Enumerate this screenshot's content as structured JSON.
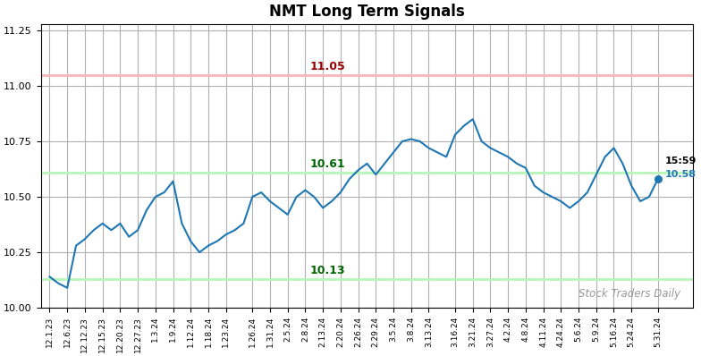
{
  "chart_data": {
    "type": "line",
    "title": "NMT Long Term Signals",
    "watermark": "Stock Traders Daily",
    "categories": [
      "12.1.23",
      null,
      "12.6.23",
      null,
      "12.12.23",
      null,
      "12.15.23",
      null,
      "12.20.23",
      null,
      "12.27.23",
      null,
      "1.3.24",
      null,
      "1.9.24",
      null,
      "1.12.24",
      null,
      "1.18.24",
      null,
      "1.23.24",
      null,
      null,
      "1.26.24",
      null,
      "1.31.24",
      null,
      "2.5.24",
      null,
      "2.8.24",
      null,
      "2.13.24",
      null,
      "2.20.24",
      null,
      "2.26.24",
      null,
      "2.29.24",
      null,
      "3.5.24",
      null,
      "3.8.24",
      null,
      "3.13.24",
      null,
      null,
      "3.16.24",
      null,
      "3.21.24",
      null,
      "3.27.24",
      null,
      "4.2.24",
      null,
      "4.8.24",
      null,
      "4.11.24",
      null,
      "4.24.24",
      null,
      "5.6.24",
      null,
      "5.9.24",
      null,
      "5.16.24",
      null,
      "5.24.24",
      null,
      null,
      "5.31.24"
    ],
    "values": [
      10.14,
      10.11,
      10.09,
      10.28,
      10.31,
      10.35,
      10.38,
      10.35,
      10.38,
      10.32,
      10.35,
      10.44,
      10.5,
      10.52,
      10.57,
      10.38,
      10.3,
      10.25,
      10.28,
      10.3,
      10.33,
      10.35,
      10.38,
      10.5,
      10.52,
      10.48,
      10.45,
      10.42,
      10.5,
      10.53,
      10.5,
      10.45,
      10.48,
      10.52,
      10.58,
      10.62,
      10.65,
      10.6,
      10.65,
      10.7,
      10.75,
      10.76,
      10.75,
      10.72,
      10.7,
      10.68,
      10.78,
      10.82,
      10.85,
      10.75,
      10.72,
      10.7,
      10.68,
      10.65,
      10.63,
      10.55,
      10.52,
      10.5,
      10.48,
      10.45,
      10.48,
      10.52,
      10.6,
      10.68,
      10.72,
      10.65,
      10.55,
      10.48,
      10.5,
      10.58
    ],
    "hlines": [
      {
        "value": 11.05,
        "label": "11.05",
        "color": "#f5b8b8",
        "label_color": "#990000"
      },
      {
        "value": 10.61,
        "label": "10.61",
        "color": "#b8f5b8",
        "label_color": "#006600"
      },
      {
        "value": 10.13,
        "label": "10.13",
        "color": "#b8f5b8",
        "label_color": "#006600"
      }
    ],
    "last_point": {
      "value": 10.58,
      "label": "10.58",
      "time_label": "15:59"
    },
    "ylim": [
      10.0,
      11.28
    ],
    "yticks": [
      {
        "value": 10.0,
        "label": "10.00"
      },
      10.25,
      {
        "value": 10.5,
        "label": "10.50"
      },
      10.75,
      {
        "value": 11.0,
        "label": "11.00"
      },
      11.25
    ],
    "grid": true
  }
}
